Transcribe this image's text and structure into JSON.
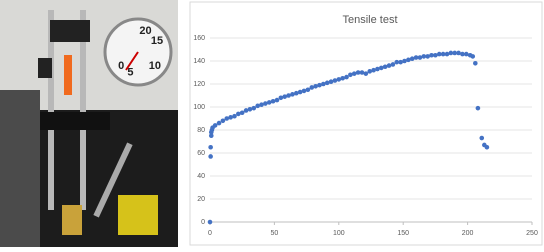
{
  "photo": {
    "gauge_labels": [
      "0",
      "5",
      "10",
      "15",
      "20"
    ]
  },
  "chart_data": {
    "type": "scatter",
    "title": "Tensile test",
    "x": [
      0,
      0.5,
      0.5,
      1,
      1,
      1.5,
      2,
      4,
      7,
      10,
      13,
      16,
      19,
      22,
      25,
      28,
      31,
      34,
      37,
      40,
      43,
      46,
      49,
      52,
      55,
      58,
      61,
      64,
      67,
      70,
      73,
      76,
      79,
      82,
      85,
      88,
      91,
      94,
      97,
      100,
      103,
      106,
      109,
      112,
      115,
      118,
      121,
      124,
      127,
      130,
      133,
      136,
      139,
      142,
      145,
      148,
      151,
      154,
      157,
      160,
      163,
      166,
      169,
      172,
      175,
      178,
      181,
      184,
      187,
      190,
      193,
      196,
      199,
      202,
      204,
      206,
      208,
      211,
      213,
      215
    ],
    "values": [
      0,
      57,
      65,
      75,
      78,
      80,
      82,
      84,
      86,
      88,
      90,
      91,
      92,
      94,
      95,
      97,
      98,
      99,
      101,
      102,
      103,
      104,
      105,
      106,
      108,
      109,
      110,
      111,
      112,
      113,
      114,
      115,
      117,
      118,
      119,
      120,
      121,
      122,
      123,
      124,
      125,
      126,
      128,
      129,
      130,
      130,
      129,
      131,
      132,
      133,
      134,
      135,
      136,
      137,
      139,
      139,
      140,
      141,
      142,
      143,
      143,
      144,
      144,
      145,
      145,
      146,
      146,
      146,
      147,
      147,
      147,
      146,
      146,
      145,
      144,
      138,
      99,
      73,
      67,
      65
    ],
    "color": "#4472c4",
    "xlim": [
      0,
      250
    ],
    "xticks": [
      0,
      50,
      100,
      150,
      200,
      250
    ],
    "ylim": [
      0,
      160
    ],
    "yticks": [
      0,
      20,
      40,
      60,
      80,
      100,
      120,
      140,
      160
    ],
    "grid": true
  }
}
